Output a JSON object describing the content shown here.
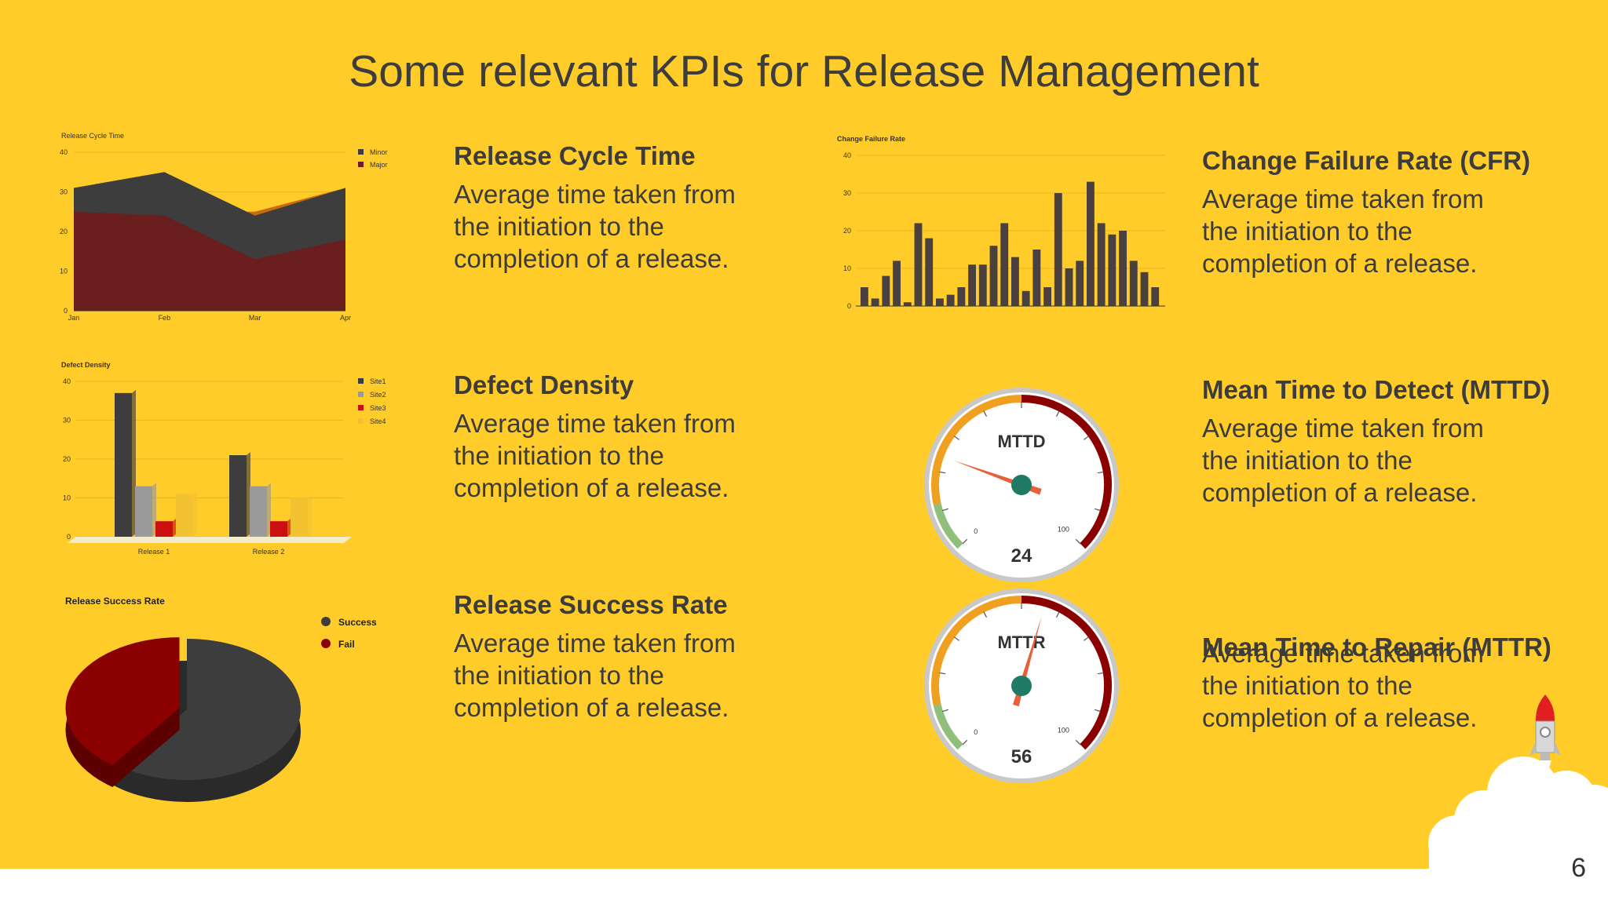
{
  "slide": {
    "title": "Some relevant KPIs for Release Management",
    "page_number": "6",
    "colors": {
      "background": "#FFCC29",
      "dark": "#3d3d3d",
      "maroon": "#6B1E1E",
      "orange": "#C96A10",
      "red": "#8B0000"
    }
  },
  "kpis": [
    {
      "title": "Release Cycle Time",
      "description": "Average time taken from the initiation to the completion of a release."
    },
    {
      "title": "Defect Density",
      "description": "Average time taken from the initiation to the completion of a release."
    },
    {
      "title": "Release Success Rate",
      "description": "Average time taken from the initiation to the completion of a release."
    },
    {
      "title": "Change Failure Rate (CFR)",
      "description": "Average time taken from the initiation to the completion of a release."
    },
    {
      "title": "Mean Time to Detect (MTTD)",
      "description": "Average time taken from the initiation to the completion of a release."
    },
    {
      "title": "Mean Time to Repair (MTTR)",
      "description": "Average time taken from the initiation to the completion of a release."
    }
  ],
  "chart_data": [
    {
      "type": "area",
      "title": "Release Cycle Time",
      "categories": [
        "Jan",
        "Feb",
        "Mar",
        "Apr"
      ],
      "ylim": [
        0,
        40
      ],
      "yticks": [
        "40",
        "30",
        "20",
        "10",
        "0"
      ],
      "series": [
        {
          "name": "Minor",
          "values": [
            31,
            35,
            24,
            31
          ],
          "color": "#3d3d3d"
        },
        {
          "name": "Major",
          "values": [
            25,
            24,
            13,
            18
          ],
          "color": "#6B1E1E"
        }
      ],
      "overlay_color": "#C96A10",
      "legend": "top-right"
    },
    {
      "type": "bar",
      "title": "Defect Density",
      "categories": [
        "Release 1",
        "Release 2"
      ],
      "ylim": [
        0,
        40
      ],
      "yticks": [
        "40",
        "30",
        "20",
        "10",
        "0"
      ],
      "series": [
        {
          "name": "Site1",
          "values": [
            37,
            21
          ],
          "color": "#3d3d3d"
        },
        {
          "name": "Site2",
          "values": [
            13,
            13
          ],
          "color": "#9a9a9a"
        },
        {
          "name": "Site3",
          "values": [
            4,
            4
          ],
          "color": "#cc1010"
        },
        {
          "name": "Site4",
          "values": [
            11,
            10
          ],
          "color": "#f2c230"
        }
      ],
      "legend": "top-right"
    },
    {
      "type": "pie",
      "title": "Release Success Rate",
      "slices": [
        {
          "name": "Success",
          "value": 60,
          "color": "#3d3d3d"
        },
        {
          "name": "Fail",
          "value": 40,
          "color": "#8B0000"
        }
      ],
      "legend": "top-right"
    },
    {
      "type": "bar",
      "title": "Change Failure Rate",
      "ylim": [
        0,
        40
      ],
      "yticks": [
        "40",
        "30",
        "20",
        "10",
        "0"
      ],
      "values": [
        5,
        2,
        8,
        12,
        1,
        22,
        18,
        2,
        3,
        5,
        11,
        11,
        16,
        22,
        13,
        4,
        15,
        5,
        30,
        10,
        12,
        33,
        22,
        19,
        20,
        12,
        9,
        5
      ],
      "color": "#4a4040"
    }
  ],
  "gauges": [
    {
      "label": "MTTD",
      "value": 24,
      "min": "0",
      "max": "100"
    },
    {
      "label": "MTTR",
      "value": 56,
      "min": "0",
      "max": "100"
    }
  ]
}
